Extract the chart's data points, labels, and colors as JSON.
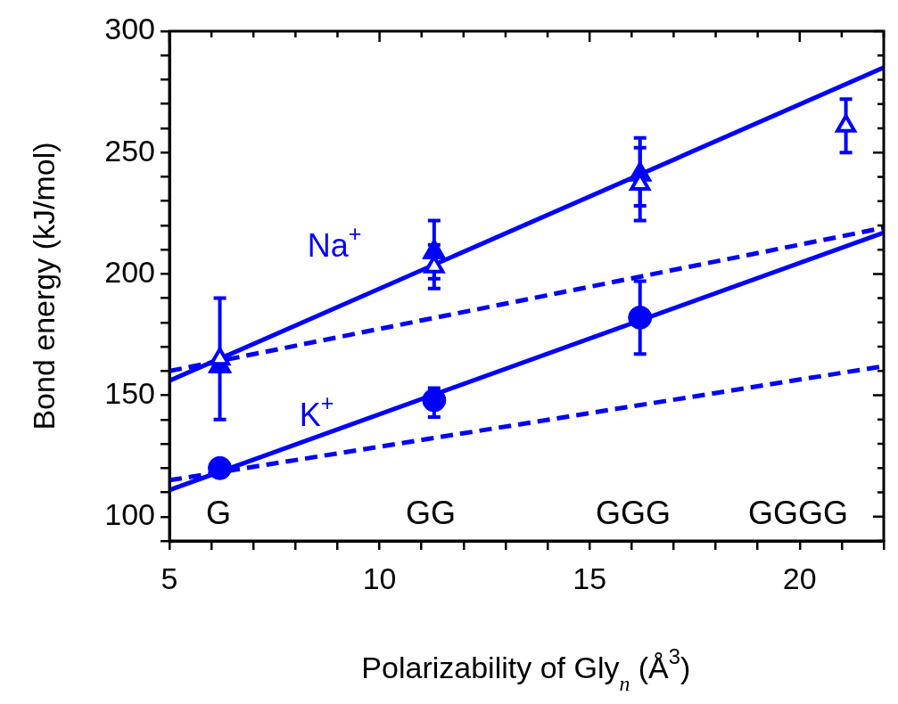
{
  "chart_data": {
    "type": "scatter",
    "xlabel": "Polarizability of Gly$_{n}$ (Å$^{3}$)",
    "ylabel": "Bond energy (kJ/mol)",
    "xlim": [
      5,
      22
    ],
    "ylim": [
      90,
      300
    ],
    "xticks": [
      5,
      {
        "value": 6,
        "label": null
      },
      {
        "value": 7,
        "label": null
      },
      {
        "value": 8,
        "label": null
      },
      {
        "value": 9,
        "label": null
      },
      10,
      {
        "value": 11,
        "label": null
      },
      {
        "value": 12,
        "label": null
      },
      {
        "value": 13,
        "label": null
      },
      {
        "value": 14,
        "label": null
      },
      15,
      {
        "value": 16,
        "label": null
      },
      {
        "value": 17,
        "label": null
      },
      {
        "value": 18,
        "label": null
      },
      {
        "value": 19,
        "label": null
      },
      20,
      {
        "value": 21,
        "label": null
      },
      {
        "value": 22,
        "label": null
      }
    ],
    "yticks": [
      {
        "value": 90,
        "label": null
      },
      100,
      {
        "value": 110,
        "label": null
      },
      {
        "value": 120,
        "label": null
      },
      {
        "value": 130,
        "label": null
      },
      {
        "value": 140,
        "label": null
      },
      150,
      {
        "value": 160,
        "label": null
      },
      {
        "value": 170,
        "label": null
      },
      {
        "value": 180,
        "label": null
      },
      {
        "value": 190,
        "label": null
      },
      200,
      {
        "value": 210,
        "label": null
      },
      {
        "value": 220,
        "label": null
      },
      {
        "value": 230,
        "label": null
      },
      {
        "value": 240,
        "label": null
      },
      250,
      {
        "value": 260,
        "label": null
      },
      {
        "value": 270,
        "label": null
      },
      {
        "value": 280,
        "label": null
      },
      {
        "value": 290,
        "label": null
      },
      300
    ],
    "grid": false,
    "legend": false,
    "series": [
      {
        "type": "line",
        "color": "#0000ff",
        "x": [
          5,
          22
        ],
        "values": [
          156,
          285
        ],
        "marker": "none",
        "line_style": "solid"
      },
      {
        "type": "line",
        "color": "#0000ff",
        "x": [
          5,
          22
        ],
        "values": [
          111,
          217
        ],
        "marker": "none",
        "line_style": "solid"
      },
      {
        "type": "line",
        "color": "#0000ff",
        "x": [
          5,
          22
        ],
        "values": [
          160,
          219
        ],
        "marker": "none",
        "line_style": "dashed"
      },
      {
        "type": "line",
        "color": "#0000ff",
        "x": [
          5,
          22
        ],
        "values": [
          115,
          162
        ],
        "marker": "none",
        "line_style": "dashed"
      },
      {
        "type": "scatter",
        "color": "#0000ff",
        "x": [
          6.2,
          11.3,
          16.2
        ],
        "values": [
          120,
          148,
          182
        ],
        "errors": [
          null,
          [
            141,
            153
          ],
          [
            167,
            197
          ]
        ],
        "marker": "circle"
      },
      {
        "type": "scatter",
        "color": "#0000ff",
        "x": [
          6.2,
          11.3,
          16.2
        ],
        "values": [
          162,
          209,
          241
        ],
        "errors": [
          null,
          [
            198,
            222
          ],
          [
            228,
            256
          ]
        ],
        "marker": "triangle"
      },
      {
        "type": "scatter",
        "color": "#0000ff",
        "x": [
          6.2,
          11.3,
          16.2,
          21.1
        ],
        "values": [
          165,
          203,
          237,
          261
        ],
        "errors": [
          25,
          9,
          15,
          11
        ],
        "marker": "triangle"
      }
    ],
    "annotations": [
      "Na$^{+}$",
      "K$^{+}$",
      "G",
      "GG",
      "GGG",
      "GGGG"
    ]
  }
}
